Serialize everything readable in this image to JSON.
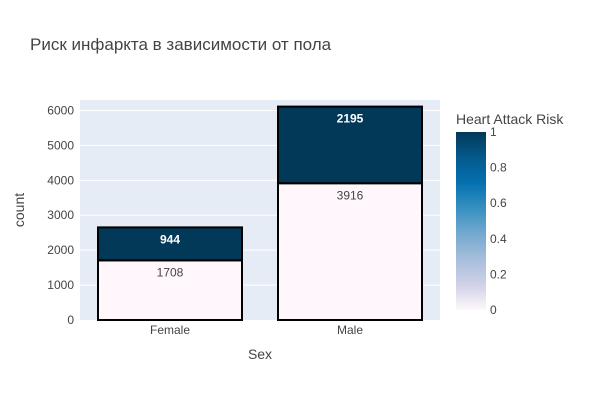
{
  "chart_data": {
    "type": "bar",
    "title": "Риск инфаркта в зависимости от пола",
    "xlabel": "Sex",
    "ylabel": "count",
    "categories": [
      "Female",
      "Male"
    ],
    "series": [
      {
        "risk": 0,
        "values": [
          1708,
          3916
        ],
        "color": "#fff7fb"
      },
      {
        "risk": 1,
        "values": [
          944,
          2195
        ],
        "color": "#023858"
      }
    ],
    "ylim": [
      0,
      6300
    ],
    "yticks": [
      0,
      1000,
      2000,
      3000,
      4000,
      5000,
      6000
    ],
    "barmode": "stack",
    "grid": true,
    "plot_bg": "#e5ecf6",
    "colorbar": {
      "title": "Heart Attack Risk",
      "ticks": [
        "1",
        "0.8",
        "0.6",
        "0.4",
        "0.2",
        "0"
      ],
      "colorscale": [
        "#fff7fb",
        "#d0d1e6",
        "#a6bddb",
        "#74a9cf",
        "#3690c0",
        "#0570b0",
        "#045a8d",
        "#023858"
      ]
    }
  }
}
